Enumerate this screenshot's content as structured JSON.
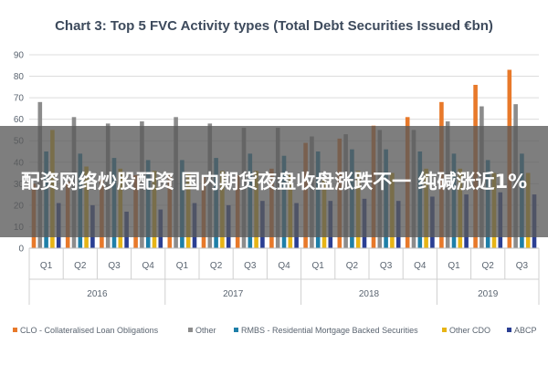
{
  "chart_data": {
    "type": "bar",
    "title": "Chart 3: Top 5 FVC Activity types (Total Debt Securities Issued €bn)",
    "ylim": [
      0,
      90
    ],
    "yticks": [
      0,
      10,
      20,
      30,
      40,
      50,
      60,
      70,
      80,
      90
    ],
    "categories": [
      "Q1",
      "Q2",
      "Q3",
      "Q4",
      "Q1",
      "Q2",
      "Q3",
      "Q4",
      "Q1",
      "Q2",
      "Q3",
      "Q4",
      "Q1",
      "Q2",
      "Q3"
    ],
    "groups": [
      {
        "label": "2016",
        "count": 4
      },
      {
        "label": "2017",
        "count": 4
      },
      {
        "label": "2018",
        "count": 4
      },
      {
        "label": "2019",
        "count": 3
      }
    ],
    "series": [
      {
        "name": "CLO - Collateralised Loan Obligations",
        "color": "#e8792a",
        "values": [
          30,
          31,
          32,
          34,
          35,
          33,
          34,
          37,
          49,
          51,
          57,
          61,
          68,
          76,
          83
        ]
      },
      {
        "name": "Other",
        "color": "#8c8c8c",
        "values": [
          68,
          61,
          58,
          59,
          61,
          58,
          56,
          56,
          52,
          53,
          55,
          55,
          59,
          66,
          67
        ]
      },
      {
        "name": "RMBS - Residential Mortgage Backed Securities",
        "color": "#1e7fa8",
        "values": [
          45,
          44,
          42,
          41,
          41,
          42,
          44,
          43,
          45,
          46,
          46,
          45,
          44,
          41,
          44
        ]
      },
      {
        "name": "Other CDO",
        "color": "#e7b415",
        "values": [
          55,
          38,
          37,
          36,
          35,
          36,
          36,
          35,
          32,
          36,
          35,
          37,
          37,
          35,
          35
        ]
      },
      {
        "name": "ABCP",
        "color": "#2b3f93",
        "values": [
          21,
          20,
          17,
          18,
          21,
          20,
          22,
          21,
          22,
          23,
          22,
          24,
          25,
          26,
          25
        ]
      }
    ],
    "grid": true,
    "legend_position": "bottom"
  },
  "overlay": {
    "text": "配资网络炒股配资 国内期货夜盘收盘涨跌不一 纯碱涨近1%"
  }
}
